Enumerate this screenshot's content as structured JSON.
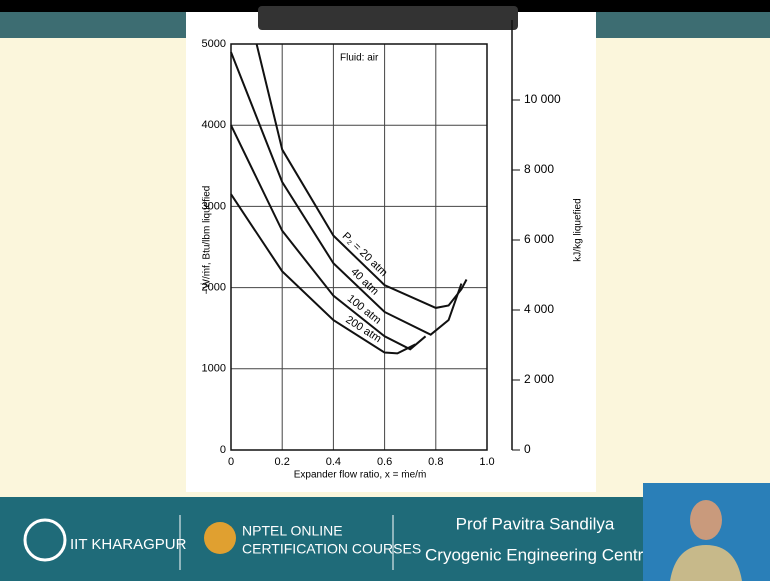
{
  "chart_data": {
    "type": "line",
    "annotation": "Fluid: air",
    "x_label": "Expander flow ratio, x = ṁe/ṁ",
    "y_label": "−Ẇ/ṁf, Btu/lbm liquefied",
    "y2_label": "kJ/kg liquefied",
    "xlim": [
      0,
      1
    ],
    "xticks": [
      0,
      0.2,
      0.4,
      0.6,
      0.8,
      {
        "value": 1,
        "label": "1.0"
      }
    ],
    "ylim": [
      0,
      5000
    ],
    "yticks": [
      0,
      1000,
      2000,
      3000,
      4000,
      5000
    ],
    "y2lim": [
      0,
      11600
    ],
    "y2ticks": [
      0,
      {
        "value": 2000,
        "label": "2 000"
      },
      {
        "value": 4000,
        "label": "4 000"
      },
      {
        "value": 6000,
        "label": "6 000"
      },
      {
        "value": 8000,
        "label": "8 000"
      },
      {
        "value": 10000,
        "label": "10 000"
      }
    ],
    "grid": true,
    "series": [
      {
        "name": "P₂ = 20 atm",
        "color": "#111111",
        "x": [
          0.1,
          0.2,
          0.4,
          0.6,
          0.8,
          0.85,
          0.9,
          0.92
        ],
        "values": [
          5000,
          3700,
          2640,
          2030,
          1750,
          1780,
          1980,
          2100
        ]
      },
      {
        "name": "40 atm",
        "color": "#111111",
        "x": [
          0,
          0.2,
          0.4,
          0.6,
          0.78,
          0.85,
          0.9
        ],
        "values": [
          4900,
          3300,
          2300,
          1700,
          1420,
          1600,
          2050
        ]
      },
      {
        "name": "100 atm",
        "color": "#111111",
        "x": [
          0,
          0.2,
          0.4,
          0.6,
          0.7,
          0.76
        ],
        "values": [
          4000,
          2700,
          1900,
          1400,
          1240,
          1400
        ]
      },
      {
        "name": "200 atm",
        "color": "#111111",
        "x": [
          0,
          0.2,
          0.4,
          0.6,
          0.65,
          0.72
        ],
        "values": [
          3150,
          2200,
          1600,
          1200,
          1190,
          1300
        ]
      }
    ]
  },
  "footer": {
    "institute": "IIT KHARAGPUR",
    "nptel_line1": "NPTEL ONLINE",
    "nptel_line2": "CERTIFICATION COURSES",
    "presenter": "Prof Pavitra Sandilya",
    "centre": "Cryogenic Engineering Centre"
  }
}
